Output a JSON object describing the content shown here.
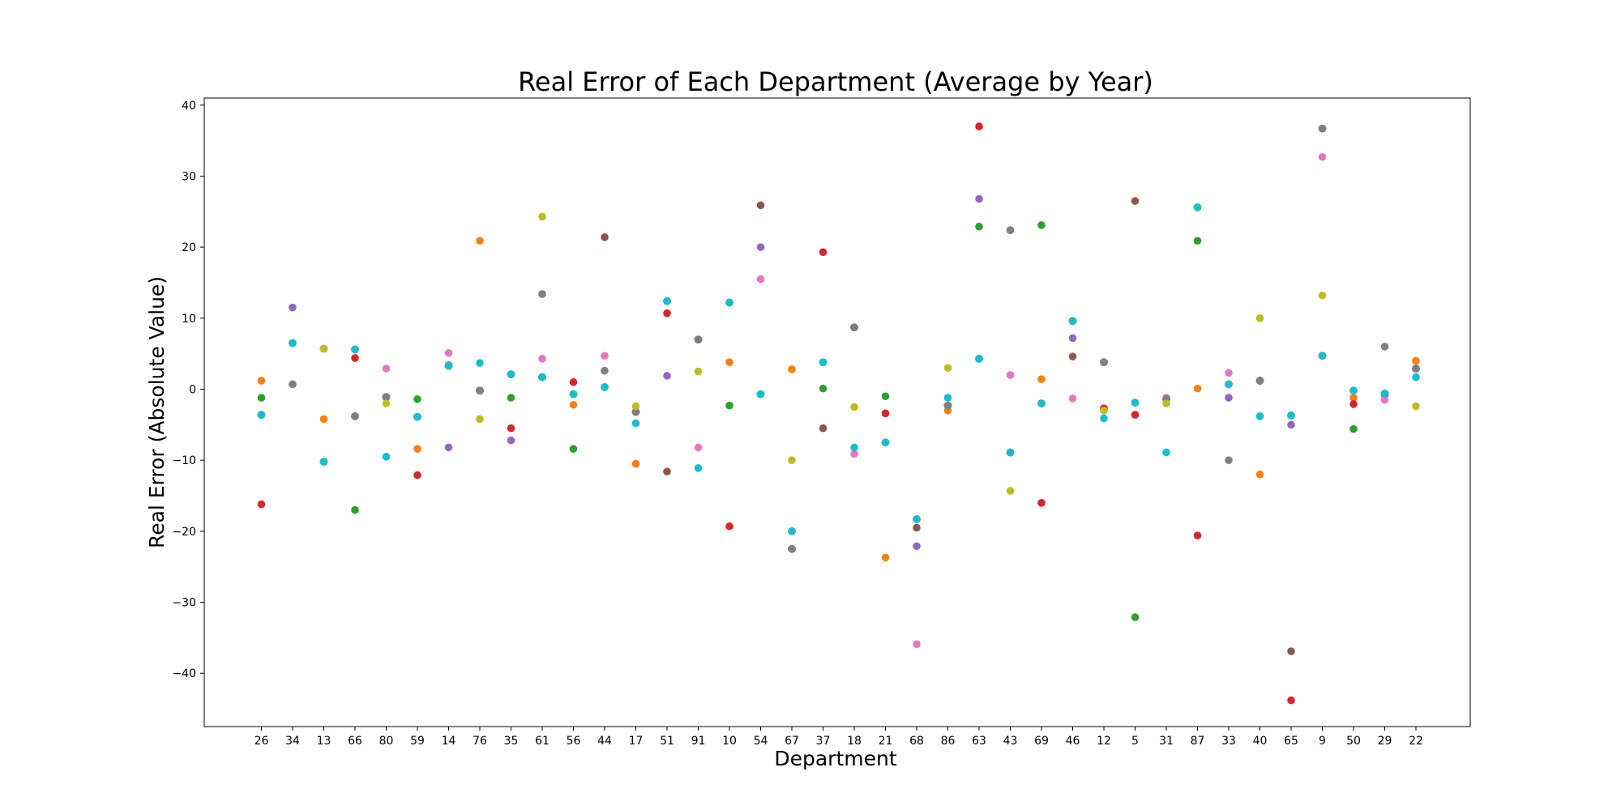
{
  "chart_data": {
    "type": "scatter",
    "title": "Real Error of Each Department (Average by Year)",
    "xlabel": "Department",
    "ylabel": "Real Error (Absolute Value)",
    "ylim": [
      -47.5,
      41
    ],
    "yticks": [
      -40,
      -30,
      -20,
      -10,
      0,
      10,
      20,
      30,
      40
    ],
    "grid": false,
    "categories": [
      "26",
      "34",
      "13",
      "66",
      "80",
      "59",
      "14",
      "76",
      "35",
      "61",
      "56",
      "44",
      "17",
      "51",
      "91",
      "10",
      "54",
      "67",
      "37",
      "18",
      "21",
      "68",
      "86",
      "63",
      "43",
      "69",
      "46",
      "12",
      "5",
      "31",
      "87",
      "33",
      "40",
      "65",
      "9",
      "50",
      "29",
      "22"
    ],
    "series": [
      {
        "color": "#1f77b4",
        "values": [
          -3.6,
          6.5,
          5.7,
          5.6,
          -1.1,
          -3.9,
          3.3,
          -0.2,
          2.1,
          1.7,
          -0.7,
          0.3,
          -3.2,
          12.4,
          7.0,
          12.2,
          -0.7,
          -22.5,
          3.8,
          8.7,
          -7.5,
          -18.3,
          -2.3,
          4.3,
          -8.9,
          -2.0,
          9.6,
          3.8,
          -1.9,
          -1.4,
          25.6,
          0.7,
          1.2,
          -3.7,
          4.7,
          -0.2,
          -0.6,
          2.9
        ]
      },
      {
        "color": "#ff7f0e",
        "values": [
          1.2,
          6.5,
          -4.2,
          -3.8,
          -1.1,
          -8.4,
          3.3,
          20.9,
          2.1,
          1.7,
          -2.2,
          0.3,
          -10.5,
          12.4,
          7.0,
          3.8,
          -0.7,
          2.8,
          3.8,
          8.7,
          -23.7,
          -18.3,
          -3.0,
          4.3,
          -8.9,
          1.4,
          9.6,
          -2.7,
          -1.9,
          -1.4,
          0.1,
          0.7,
          -12.0,
          -3.7,
          4.7,
          -1.2,
          -0.6,
          4.0
        ]
      },
      {
        "color": "#2ca02c",
        "values": [
          -1.2,
          6.5,
          -10.2,
          -17.0,
          -1.1,
          -1.4,
          3.3,
          -0.2,
          -1.2,
          1.7,
          -8.4,
          0.3,
          -3.2,
          12.4,
          7.0,
          -2.3,
          -0.7,
          -20.0,
          0.1,
          8.7,
          -1.0,
          -18.3,
          -2.3,
          22.9,
          -8.9,
          23.1,
          9.6,
          -2.7,
          -32.1,
          -1.4,
          20.9,
          0.7,
          1.2,
          -3.7,
          4.7,
          -5.6,
          -0.6,
          2.9
        ]
      },
      {
        "color": "#d62728",
        "values": [
          -16.2,
          6.5,
          -10.2,
          4.4,
          -1.1,
          -12.1,
          3.3,
          -0.2,
          -5.5,
          1.7,
          1.0,
          0.3,
          -3.2,
          10.7,
          7.0,
          -19.3,
          -0.7,
          -20.0,
          19.3,
          8.7,
          -3.4,
          -18.3,
          -2.3,
          37.0,
          -8.9,
          -16.0,
          9.6,
          -2.7,
          -3.6,
          -1.4,
          -20.6,
          0.7,
          1.2,
          -43.8,
          4.7,
          -2.1,
          -0.6,
          2.9
        ]
      },
      {
        "color": "#9467bd",
        "values": [
          -3.6,
          11.5,
          5.7,
          5.6,
          -1.1,
          -3.9,
          -8.2,
          -0.2,
          -7.2,
          1.7,
          -0.7,
          0.3,
          -3.2,
          1.9,
          7.0,
          12.2,
          20.0,
          -22.5,
          3.8,
          8.7,
          -7.5,
          -22.1,
          -2.3,
          26.8,
          -8.9,
          -2.0,
          7.2,
          3.8,
          -1.9,
          -1.4,
          25.6,
          -1.2,
          1.2,
          -5.0,
          4.7,
          -0.2,
          -0.6,
          2.9
        ]
      },
      {
        "color": "#8c564b",
        "values": [
          -3.6,
          0.7,
          5.7,
          -3.8,
          -1.1,
          -3.9,
          3.3,
          -0.2,
          2.1,
          13.4,
          -0.7,
          21.4,
          -3.2,
          -11.6,
          7.0,
          12.2,
          25.9,
          -22.5,
          -5.5,
          8.7,
          -7.5,
          -19.5,
          -2.3,
          4.3,
          22.4,
          -2.0,
          4.6,
          3.8,
          26.5,
          -1.4,
          25.6,
          0.7,
          1.2,
          -36.9,
          36.7,
          -0.2,
          -0.8,
          2.9
        ]
      },
      {
        "color": "#e377c2",
        "values": [
          -3.6,
          6.5,
          5.7,
          5.6,
          2.9,
          -3.9,
          5.1,
          -0.2,
          2.1,
          4.3,
          -0.7,
          4.7,
          -3.2,
          12.4,
          -8.2,
          12.2,
          15.5,
          -22.5,
          3.8,
          -9.1,
          -7.5,
          -35.9,
          -2.3,
          4.3,
          2.0,
          -2.0,
          -1.3,
          3.8,
          -1.9,
          -1.2,
          25.6,
          2.3,
          1.2,
          -3.7,
          32.7,
          -0.2,
          -1.5,
          2.9
        ]
      },
      {
        "color": "#7f7f7f",
        "values": [
          -3.6,
          0.7,
          5.7,
          -3.8,
          -1.1,
          -3.9,
          3.4,
          -0.2,
          2.1,
          13.4,
          -0.7,
          2.6,
          -3.2,
          12.4,
          7.0,
          12.2,
          -0.7,
          -22.5,
          3.8,
          8.7,
          -7.5,
          -18.3,
          -2.3,
          4.3,
          22.4,
          -2.0,
          9.6,
          3.8,
          -1.9,
          -1.4,
          25.6,
          -10.0,
          1.2,
          -3.7,
          36.7,
          -0.2,
          6.0,
          2.9
        ]
      },
      {
        "color": "#bcbd22",
        "values": [
          -3.6,
          6.5,
          5.7,
          5.6,
          -2.0,
          -3.9,
          3.3,
          -4.2,
          2.1,
          24.3,
          -0.7,
          0.3,
          -2.4,
          12.4,
          2.5,
          12.2,
          -0.7,
          -10.0,
          3.8,
          -2.5,
          -7.5,
          -18.3,
          3.0,
          4.3,
          -14.3,
          -2.0,
          9.6,
          -3.0,
          -1.9,
          -2.0,
          25.6,
          0.7,
          10.0,
          -3.7,
          13.2,
          -0.2,
          -0.6,
          -2.4
        ]
      },
      {
        "color": "#17becf",
        "values": [
          -3.6,
          6.5,
          -10.2,
          5.6,
          -9.5,
          -3.9,
          3.3,
          3.7,
          2.1,
          1.7,
          -0.7,
          0.3,
          -4.8,
          12.4,
          -11.1,
          12.2,
          -0.7,
          -20.0,
          3.8,
          -8.2,
          -7.5,
          -18.3,
          -1.2,
          4.3,
          -8.9,
          -2.0,
          9.6,
          -4.1,
          -1.9,
          -8.9,
          25.6,
          0.7,
          -3.8,
          -3.7,
          4.7,
          -0.2,
          -0.6,
          1.7
        ]
      }
    ]
  }
}
